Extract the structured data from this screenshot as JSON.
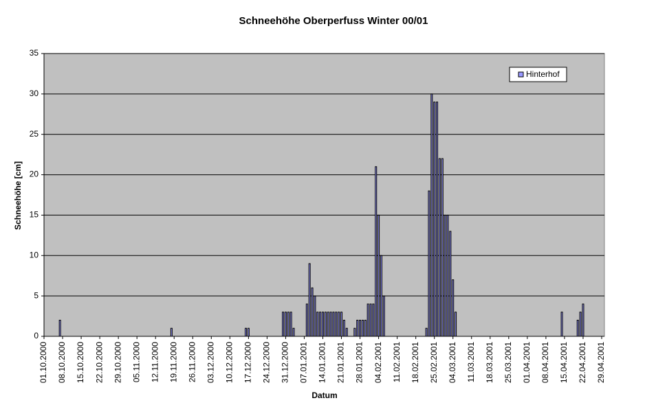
{
  "chart_data": {
    "type": "bar",
    "title": "Schneehöhe Oberperfuss Winter 00/01",
    "x_label": "Datum",
    "y_label": "Schneehöhe [cm]",
    "categories": [
      "01.10.2000",
      null,
      null,
      null,
      null,
      null,
      null,
      "08.10.2000",
      null,
      null,
      null,
      null,
      null,
      null,
      "15.10.2000",
      null,
      null,
      null,
      null,
      null,
      null,
      "22.10.2000",
      null,
      null,
      null,
      null,
      null,
      null,
      "29.10.2000",
      null,
      null,
      null,
      null,
      null,
      null,
      "05.11.2000",
      null,
      null,
      null,
      null,
      null,
      null,
      "12.11.2000",
      null,
      null,
      null,
      null,
      null,
      null,
      "19.11.2000",
      null,
      null,
      null,
      null,
      null,
      null,
      "26.11.2000",
      null,
      null,
      null,
      null,
      null,
      null,
      "03.12.2000",
      null,
      null,
      null,
      null,
      null,
      null,
      "10.12.2000",
      null,
      null,
      null,
      null,
      null,
      null,
      "17.12.2000",
      null,
      null,
      null,
      null,
      null,
      null,
      "24.12.2000",
      null,
      null,
      null,
      null,
      null,
      null,
      "31.12.2000",
      null,
      null,
      null,
      null,
      null,
      null,
      "07.01.2001",
      null,
      null,
      null,
      null,
      null,
      null,
      "14.01.2001",
      null,
      null,
      null,
      null,
      null,
      null,
      "21.01.2001",
      null,
      null,
      null,
      null,
      null,
      null,
      "28.01.2001",
      null,
      null,
      null,
      null,
      null,
      null,
      "04.02.2001",
      null,
      null,
      null,
      null,
      null,
      null,
      "11.02.2001",
      null,
      null,
      null,
      null,
      null,
      null,
      "18.02.2001",
      null,
      null,
      null,
      null,
      null,
      null,
      "25.02.2001",
      null,
      null,
      null,
      null,
      null,
      null,
      "04.03.2001",
      null,
      null,
      null,
      null,
      null,
      null,
      "11.03.2001",
      null,
      null,
      null,
      null,
      null,
      null,
      "18.03.2001",
      null,
      null,
      null,
      null,
      null,
      null,
      "25.03.2001",
      null,
      null,
      null,
      null,
      null,
      null,
      "01.04.2001",
      null,
      null,
      null,
      null,
      null,
      null,
      "08.04.2001",
      null,
      null,
      null,
      null,
      null,
      null,
      "15.04.2001",
      null,
      null,
      null,
      null,
      null,
      null,
      "22.04.2001",
      null,
      null,
      null,
      null,
      null,
      null,
      "29.04.2001"
    ],
    "series": [
      {
        "name": "Hinterhof",
        "color": "#9999ff",
        "values": [
          0,
          0,
          0,
          0,
          0,
          0,
          2,
          0,
          0,
          0,
          0,
          0,
          0,
          0,
          0,
          0,
          0,
          0,
          0,
          0,
          0,
          0,
          0,
          0,
          0,
          0,
          0,
          0,
          0,
          0,
          0,
          0,
          0,
          0,
          0,
          0,
          0,
          0,
          0,
          0,
          0,
          0,
          0,
          0,
          0,
          0,
          0,
          0,
          1,
          0,
          0,
          0,
          0,
          0,
          0,
          0,
          0,
          0,
          0,
          0,
          0,
          0,
          0,
          0,
          0,
          0,
          0,
          0,
          0,
          0,
          0,
          0,
          0,
          0,
          0,
          0,
          1,
          1,
          0,
          0,
          0,
          0,
          0,
          0,
          0,
          0,
          0,
          0,
          0,
          0,
          3,
          3,
          3,
          3,
          1,
          0,
          0,
          0,
          0,
          4,
          9,
          6,
          5,
          3,
          3,
          3,
          3,
          3,
          3,
          3,
          3,
          3,
          3,
          2,
          1,
          0,
          0,
          1,
          2,
          2,
          2,
          2,
          4,
          4,
          4,
          21,
          15,
          10,
          5,
          0,
          0,
          0,
          0,
          0,
          0,
          0,
          0,
          0,
          0,
          0,
          0,
          0,
          0,
          0,
          1,
          18,
          30,
          29,
          29,
          22,
          22,
          15,
          15,
          13,
          7,
          3,
          0,
          0,
          0,
          0,
          0,
          0,
          0,
          0,
          0,
          0,
          0,
          0,
          0,
          0,
          0,
          0,
          0,
          0,
          0,
          0,
          0,
          0,
          0,
          0,
          0,
          0,
          0,
          0,
          0,
          0,
          0,
          0,
          0,
          0,
          0,
          0,
          0,
          0,
          0,
          3,
          0,
          0,
          0,
          0,
          0,
          2,
          3,
          4,
          0,
          0,
          0,
          0,
          0,
          0,
          0
        ]
      }
    ],
    "ylim": [
      0,
      35
    ],
    "yticks": [
      0,
      5,
      10,
      15,
      20,
      25,
      30,
      35
    ],
    "grid": true,
    "legend": "top-right"
  }
}
